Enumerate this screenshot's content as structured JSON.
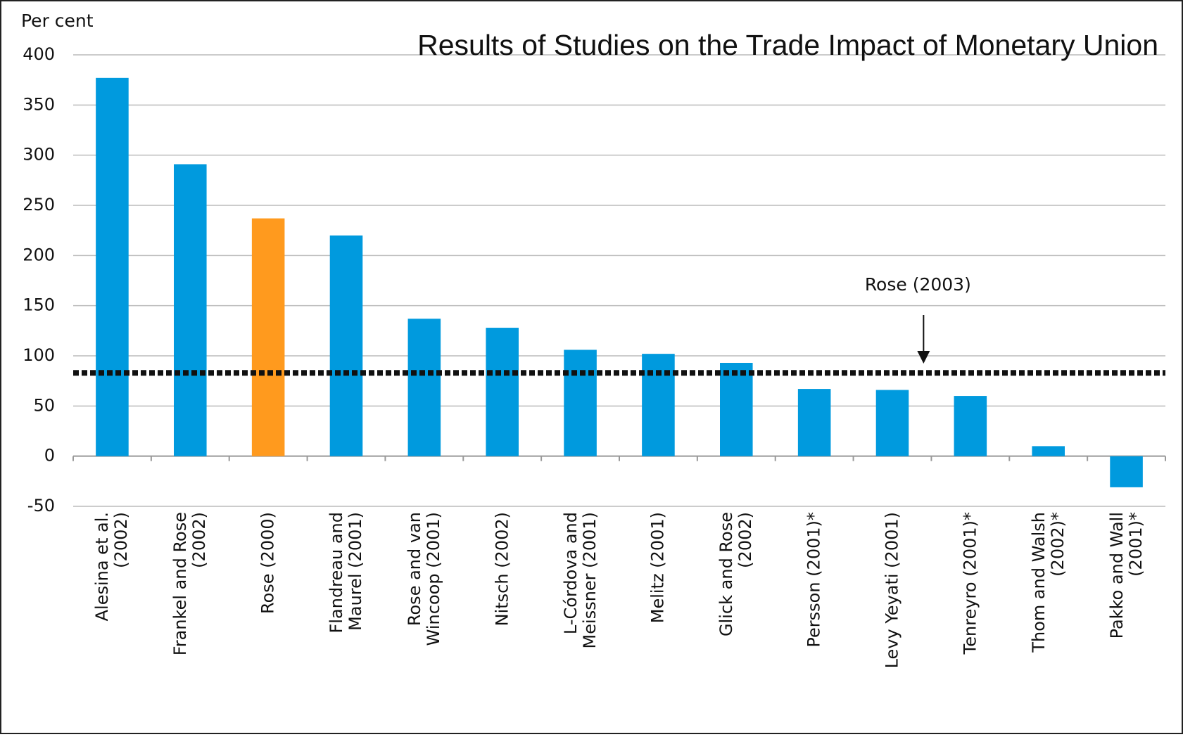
{
  "chart_data": {
    "type": "bar",
    "title": "Results of Studies on the Trade Impact of Monetary Union",
    "y_axis_label": "Per cent",
    "categories": [
      "Alesina et al.\n(2002)",
      "Frankel and Rose\n(2002)",
      "Rose (2000)",
      "Flandreau and\nMaurel (2001)",
      "Rose and van\nWincoop (2001)",
      "Nitsch (2002)",
      "L-Córdova and\nMeissner (2001)",
      "Melitz (2001)",
      "Glick and Rose\n(2002)",
      "Persson (2001)*",
      "Levy Yeyati (2001)",
      "Tenreyro (2001)*",
      "Thom and Walsh\n(2002)*",
      "Pakko and Wall\n(2001)*"
    ],
    "values": [
      377,
      291,
      237,
      220,
      137,
      128,
      106,
      102,
      93,
      67,
      66,
      60,
      10,
      -31
    ],
    "colors": [
      "#009ade",
      "#009ade",
      "#ff9a1e",
      "#009ade",
      "#009ade",
      "#009ade",
      "#009ade",
      "#009ade",
      "#009ade",
      "#009ade",
      "#009ade",
      "#009ade",
      "#009ade",
      "#009ade"
    ],
    "ylim": [
      -50,
      400
    ],
    "yticks": [
      -50,
      0,
      50,
      100,
      150,
      200,
      250,
      300,
      350,
      400
    ],
    "grid": true,
    "reference_line": {
      "value": 83,
      "label": "Rose (2003)"
    }
  }
}
